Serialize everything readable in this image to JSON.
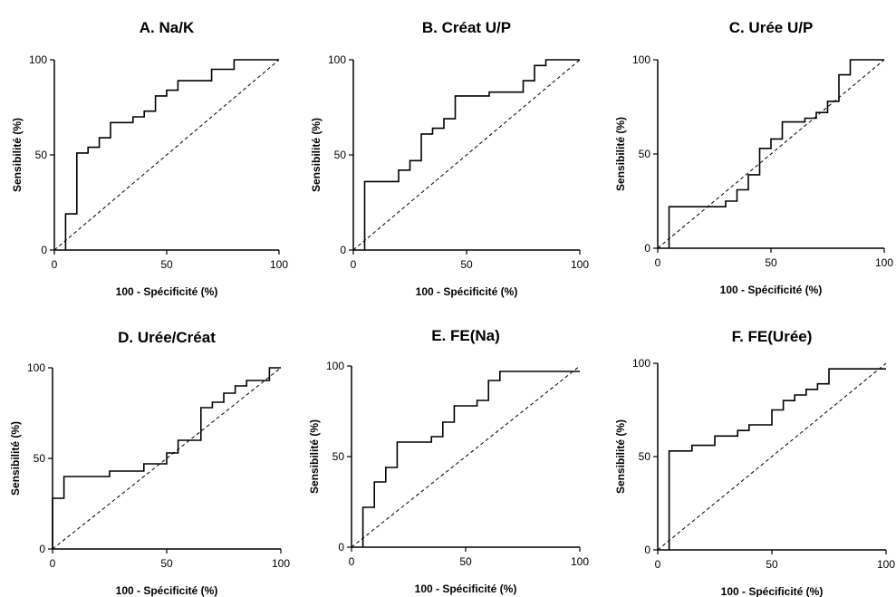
{
  "chart_data": [
    {
      "type": "line",
      "title": "A. Na/K",
      "xlabel": "100 - Spécificité (%)",
      "ylabel": "Sensibilité (%)",
      "xlim": [
        0,
        100
      ],
      "ylim": [
        0,
        100
      ],
      "xticks": [
        "0",
        "50",
        "100"
      ],
      "yticks": [
        "0",
        "50",
        "100"
      ],
      "series": [
        {
          "style": "solid-step",
          "x": [
            5,
            5,
            10,
            10,
            15,
            15,
            20,
            20,
            25,
            25,
            35,
            35,
            40,
            40,
            45,
            45,
            50,
            50,
            55,
            55,
            70,
            70,
            80,
            80,
            100
          ],
          "y": [
            0,
            19,
            19,
            51,
            51,
            54,
            54,
            59,
            59,
            67,
            67,
            70,
            70,
            73,
            73,
            81,
            81,
            84,
            84,
            89,
            89,
            95,
            95,
            100,
            100
          ]
        },
        {
          "style": "dashed-diagonal",
          "x": [
            0,
            100
          ],
          "y": [
            0,
            100
          ]
        }
      ]
    },
    {
      "type": "line",
      "title": "B. Créat U/P",
      "xlabel": "100 - Spécificité (%)",
      "ylabel": "Sensibilité (%)",
      "xlim": [
        0,
        100
      ],
      "ylim": [
        0,
        100
      ],
      "xticks": [
        "0",
        "50",
        "100"
      ],
      "yticks": [
        "0",
        "50",
        "100"
      ],
      "series": [
        {
          "style": "solid-step",
          "x": [
            5,
            5,
            20,
            20,
            25,
            25,
            30,
            30,
            35,
            35,
            40,
            40,
            45,
            45,
            60,
            60,
            75,
            75,
            80,
            80,
            85,
            85,
            100
          ],
          "y": [
            0,
            36,
            36,
            42,
            42,
            47,
            47,
            61,
            61,
            64,
            64,
            69,
            69,
            81,
            81,
            83,
            83,
            89,
            89,
            97,
            97,
            100,
            100
          ]
        },
        {
          "style": "dashed-diagonal",
          "x": [
            0,
            100
          ],
          "y": [
            0,
            100
          ]
        }
      ]
    },
    {
      "type": "line",
      "title": "C. Urée U/P",
      "xlabel": "100 - Spécificité (%)",
      "ylabel": "Sensibilité (%)",
      "xlim": [
        0,
        100
      ],
      "ylim": [
        0,
        100
      ],
      "xticks": [
        "0",
        "50",
        "100"
      ],
      "yticks": [
        "0",
        "50",
        "100"
      ],
      "series": [
        {
          "style": "solid-step",
          "x": [
            5,
            5,
            30,
            30,
            35,
            35,
            40,
            40,
            45,
            45,
            50,
            50,
            55,
            55,
            65,
            65,
            70,
            70,
            75,
            75,
            80,
            80,
            85,
            85,
            100
          ],
          "y": [
            0,
            22,
            22,
            25,
            25,
            31,
            31,
            39,
            39,
            53,
            53,
            58,
            58,
            67,
            67,
            69,
            69,
            72,
            72,
            78,
            78,
            92,
            92,
            100,
            100
          ]
        },
        {
          "style": "dashed-diagonal",
          "x": [
            0,
            100
          ],
          "y": [
            0,
            100
          ]
        }
      ]
    },
    {
      "type": "line",
      "title": "D. Urée/Créat",
      "xlabel": "100 - Spécificité (%)",
      "ylabel": "Sensibilité (%)",
      "xlim": [
        0,
        100
      ],
      "ylim": [
        0,
        100
      ],
      "xticks": [
        "0",
        "50",
        "100"
      ],
      "yticks": [
        "0",
        "50",
        "100"
      ],
      "series": [
        {
          "style": "solid-step",
          "x": [
            0,
            0,
            5,
            5,
            25,
            25,
            40,
            40,
            50,
            50,
            55,
            55,
            65,
            65,
            70,
            70,
            75,
            75,
            80,
            80,
            85,
            85,
            95,
            95,
            100
          ],
          "y": [
            0,
            28,
            28,
            40,
            40,
            43,
            43,
            47,
            47,
            53,
            53,
            60,
            60,
            78,
            78,
            81,
            81,
            86,
            86,
            90,
            90,
            93,
            93,
            100,
            100
          ]
        },
        {
          "style": "dashed-diagonal",
          "x": [
            0,
            100
          ],
          "y": [
            0,
            100
          ]
        }
      ]
    },
    {
      "type": "line",
      "title": "E. FE(Na)",
      "xlabel": "100 - Spécificité (%)",
      "ylabel": "Sensibilité (%)",
      "xlim": [
        0,
        100
      ],
      "ylim": [
        0,
        100
      ],
      "xticks": [
        "0",
        "50",
        "100"
      ],
      "yticks": [
        "0",
        "50",
        "100"
      ],
      "series": [
        {
          "style": "solid-step",
          "x": [
            5,
            5,
            10,
            10,
            15,
            15,
            20,
            20,
            35,
            35,
            40,
            40,
            45,
            45,
            55,
            55,
            60,
            60,
            65,
            65,
            100
          ],
          "y": [
            0,
            22,
            22,
            36,
            36,
            44,
            44,
            58,
            58,
            61,
            61,
            69,
            69,
            78,
            78,
            81,
            81,
            92,
            92,
            97,
            97
          ]
        },
        {
          "style": "dashed-diagonal",
          "x": [
            0,
            100
          ],
          "y": [
            0,
            100
          ]
        }
      ]
    },
    {
      "type": "line",
      "title": "F. FE(Urée)",
      "xlabel": "100 - Spécificité (%)",
      "ylabel": "Sensibilité (%)",
      "xlim": [
        0,
        100
      ],
      "ylim": [
        0,
        100
      ],
      "xticks": [
        "0",
        "50",
        "100"
      ],
      "yticks": [
        "0",
        "50",
        "100"
      ],
      "series": [
        {
          "style": "solid-step",
          "x": [
            5,
            5,
            15,
            15,
            25,
            25,
            35,
            35,
            40,
            40,
            50,
            50,
            55,
            55,
            60,
            60,
            65,
            65,
            70,
            70,
            75,
            75,
            100
          ],
          "y": [
            0,
            53,
            53,
            56,
            56,
            61,
            61,
            64,
            64,
            67,
            67,
            75,
            75,
            80,
            80,
            83,
            83,
            86,
            86,
            89,
            89,
            97,
            97
          ]
        },
        {
          "style": "dashed-diagonal",
          "x": [
            0,
            100
          ],
          "y": [
            0,
            100
          ]
        }
      ]
    }
  ]
}
